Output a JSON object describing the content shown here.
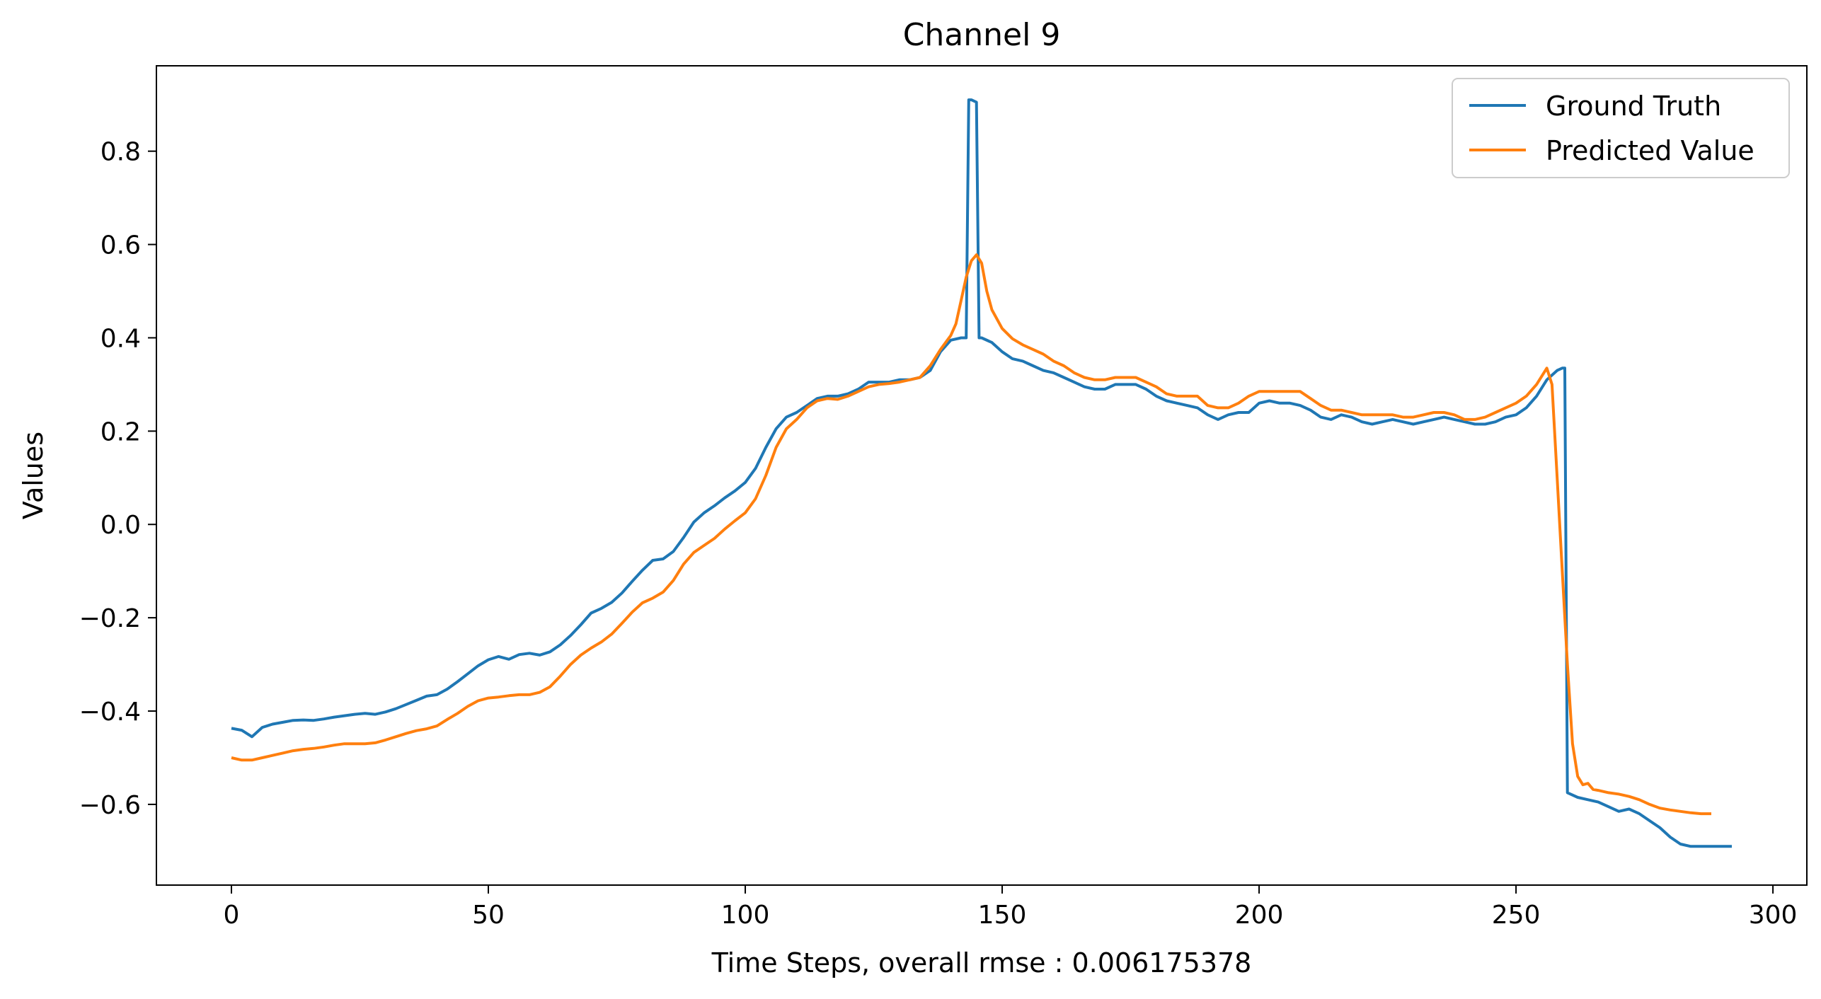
{
  "chart_data": {
    "type": "line",
    "title": "Channel 9",
    "xlabel": "Time Steps, overall rmse : 0.006175378",
    "ylabel": "Values",
    "xlim": [
      -14.6,
      306.6
    ],
    "ylim": [
      -0.773,
      0.983
    ],
    "x_ticks": [
      0,
      50,
      100,
      150,
      200,
      250,
      300
    ],
    "x_tick_labels": [
      "0",
      "50",
      "100",
      "150",
      "200",
      "250",
      "300"
    ],
    "y_ticks": [
      -0.6,
      -0.4,
      -0.2,
      0.0,
      0.2,
      0.4,
      0.6,
      0.8
    ],
    "y_tick_labels": [
      "−0.6",
      "−0.4",
      "−0.2",
      "0.0",
      "0.2",
      "0.4",
      "0.6",
      "0.8"
    ],
    "grid": false,
    "legend": {
      "position": "top-right",
      "entries": [
        "Ground Truth",
        "Predicted Value"
      ]
    },
    "series": [
      {
        "name": "Ground Truth",
        "color": "#1f77b4",
        "points": [
          [
            0,
            -0.437
          ],
          [
            2,
            -0.441
          ],
          [
            4,
            -0.455
          ],
          [
            6,
            -0.435
          ],
          [
            8,
            -0.428
          ],
          [
            10,
            -0.424
          ],
          [
            12,
            -0.42
          ],
          [
            14,
            -0.419
          ],
          [
            16,
            -0.42
          ],
          [
            18,
            -0.417
          ],
          [
            20,
            -0.413
          ],
          [
            22,
            -0.41
          ],
          [
            24,
            -0.407
          ],
          [
            26,
            -0.405
          ],
          [
            28,
            -0.407
          ],
          [
            30,
            -0.402
          ],
          [
            32,
            -0.395
          ],
          [
            34,
            -0.386
          ],
          [
            36,
            -0.377
          ],
          [
            38,
            -0.368
          ],
          [
            40,
            -0.365
          ],
          [
            42,
            -0.353
          ],
          [
            44,
            -0.337
          ],
          [
            46,
            -0.32
          ],
          [
            48,
            -0.303
          ],
          [
            50,
            -0.29
          ],
          [
            52,
            -0.283
          ],
          [
            54,
            -0.289
          ],
          [
            56,
            -0.279
          ],
          [
            58,
            -0.276
          ],
          [
            60,
            -0.28
          ],
          [
            62,
            -0.273
          ],
          [
            64,
            -0.258
          ],
          [
            66,
            -0.238
          ],
          [
            68,
            -0.215
          ],
          [
            70,
            -0.19
          ],
          [
            72,
            -0.18
          ],
          [
            74,
            -0.167
          ],
          [
            76,
            -0.147
          ],
          [
            78,
            -0.122
          ],
          [
            80,
            -0.098
          ],
          [
            82,
            -0.077
          ],
          [
            84,
            -0.074
          ],
          [
            86,
            -0.058
          ],
          [
            88,
            -0.028
          ],
          [
            90,
            0.005
          ],
          [
            92,
            0.025
          ],
          [
            94,
            0.04
          ],
          [
            96,
            0.057
          ],
          [
            98,
            0.072
          ],
          [
            100,
            0.09
          ],
          [
            102,
            0.12
          ],
          [
            104,
            0.165
          ],
          [
            106,
            0.205
          ],
          [
            108,
            0.23
          ],
          [
            110,
            0.24
          ],
          [
            112,
            0.255
          ],
          [
            114,
            0.27
          ],
          [
            116,
            0.275
          ],
          [
            118,
            0.275
          ],
          [
            120,
            0.28
          ],
          [
            122,
            0.29
          ],
          [
            124,
            0.305
          ],
          [
            126,
            0.305
          ],
          [
            128,
            0.305
          ],
          [
            130,
            0.31
          ],
          [
            132,
            0.31
          ],
          [
            134,
            0.315
          ],
          [
            136,
            0.33
          ],
          [
            138,
            0.37
          ],
          [
            140,
            0.395
          ],
          [
            142,
            0.4
          ],
          [
            143,
            0.4
          ],
          [
            143.5,
            0.91
          ],
          [
            144,
            0.91
          ],
          [
            145,
            0.905
          ],
          [
            145.5,
            0.4
          ],
          [
            146,
            0.4
          ],
          [
            148,
            0.39
          ],
          [
            150,
            0.37
          ],
          [
            152,
            0.355
          ],
          [
            154,
            0.35
          ],
          [
            156,
            0.34
          ],
          [
            158,
            0.33
          ],
          [
            160,
            0.325
          ],
          [
            162,
            0.315
          ],
          [
            164,
            0.305
          ],
          [
            166,
            0.295
          ],
          [
            168,
            0.29
          ],
          [
            170,
            0.29
          ],
          [
            172,
            0.3
          ],
          [
            174,
            0.3
          ],
          [
            176,
            0.3
          ],
          [
            178,
            0.29
          ],
          [
            180,
            0.275
          ],
          [
            182,
            0.265
          ],
          [
            184,
            0.26
          ],
          [
            186,
            0.255
          ],
          [
            188,
            0.25
          ],
          [
            190,
            0.235
          ],
          [
            192,
            0.225
          ],
          [
            194,
            0.235
          ],
          [
            196,
            0.24
          ],
          [
            198,
            0.24
          ],
          [
            200,
            0.26
          ],
          [
            202,
            0.265
          ],
          [
            204,
            0.26
          ],
          [
            206,
            0.26
          ],
          [
            208,
            0.255
          ],
          [
            210,
            0.245
          ],
          [
            212,
            0.23
          ],
          [
            214,
            0.225
          ],
          [
            216,
            0.235
          ],
          [
            218,
            0.23
          ],
          [
            220,
            0.22
          ],
          [
            222,
            0.215
          ],
          [
            224,
            0.22
          ],
          [
            226,
            0.225
          ],
          [
            228,
            0.22
          ],
          [
            230,
            0.215
          ],
          [
            232,
            0.22
          ],
          [
            234,
            0.225
          ],
          [
            236,
            0.23
          ],
          [
            238,
            0.225
          ],
          [
            240,
            0.22
          ],
          [
            242,
            0.215
          ],
          [
            244,
            0.215
          ],
          [
            246,
            0.22
          ],
          [
            248,
            0.23
          ],
          [
            250,
            0.235
          ],
          [
            252,
            0.25
          ],
          [
            254,
            0.275
          ],
          [
            256,
            0.31
          ],
          [
            258,
            0.33
          ],
          [
            259,
            0.335
          ],
          [
            259.5,
            0.335
          ],
          [
            260,
            -0.575
          ],
          [
            262,
            -0.585
          ],
          [
            264,
            -0.59
          ],
          [
            266,
            -0.595
          ],
          [
            268,
            -0.605
          ],
          [
            270,
            -0.615
          ],
          [
            272,
            -0.61
          ],
          [
            274,
            -0.62
          ],
          [
            276,
            -0.635
          ],
          [
            278,
            -0.65
          ],
          [
            280,
            -0.67
          ],
          [
            282,
            -0.685
          ],
          [
            284,
            -0.69
          ],
          [
            286,
            -0.69
          ],
          [
            288,
            -0.69
          ],
          [
            290,
            -0.69
          ],
          [
            292,
            -0.69
          ]
        ]
      },
      {
        "name": "Predicted Value",
        "color": "#ff7f0e",
        "points": [
          [
            0,
            -0.5
          ],
          [
            2,
            -0.505
          ],
          [
            4,
            -0.505
          ],
          [
            6,
            -0.5
          ],
          [
            8,
            -0.495
          ],
          [
            10,
            -0.49
          ],
          [
            12,
            -0.485
          ],
          [
            14,
            -0.482
          ],
          [
            16,
            -0.48
          ],
          [
            18,
            -0.477
          ],
          [
            20,
            -0.473
          ],
          [
            22,
            -0.47
          ],
          [
            24,
            -0.47
          ],
          [
            26,
            -0.47
          ],
          [
            28,
            -0.468
          ],
          [
            30,
            -0.462
          ],
          [
            32,
            -0.455
          ],
          [
            34,
            -0.448
          ],
          [
            36,
            -0.442
          ],
          [
            38,
            -0.438
          ],
          [
            40,
            -0.432
          ],
          [
            42,
            -0.418
          ],
          [
            44,
            -0.405
          ],
          [
            46,
            -0.39
          ],
          [
            48,
            -0.378
          ],
          [
            50,
            -0.372
          ],
          [
            52,
            -0.37
          ],
          [
            54,
            -0.367
          ],
          [
            56,
            -0.365
          ],
          [
            58,
            -0.365
          ],
          [
            60,
            -0.36
          ],
          [
            62,
            -0.348
          ],
          [
            64,
            -0.325
          ],
          [
            66,
            -0.3
          ],
          [
            68,
            -0.28
          ],
          [
            70,
            -0.265
          ],
          [
            72,
            -0.252
          ],
          [
            74,
            -0.235
          ],
          [
            76,
            -0.212
          ],
          [
            78,
            -0.188
          ],
          [
            80,
            -0.168
          ],
          [
            82,
            -0.158
          ],
          [
            84,
            -0.145
          ],
          [
            86,
            -0.12
          ],
          [
            88,
            -0.085
          ],
          [
            90,
            -0.06
          ],
          [
            92,
            -0.045
          ],
          [
            94,
            -0.03
          ],
          [
            96,
            -0.01
          ],
          [
            98,
            0.008
          ],
          [
            100,
            0.025
          ],
          [
            102,
            0.055
          ],
          [
            104,
            0.105
          ],
          [
            106,
            0.165
          ],
          [
            108,
            0.205
          ],
          [
            110,
            0.225
          ],
          [
            112,
            0.25
          ],
          [
            114,
            0.265
          ],
          [
            116,
            0.27
          ],
          [
            118,
            0.268
          ],
          [
            120,
            0.275
          ],
          [
            122,
            0.285
          ],
          [
            124,
            0.295
          ],
          [
            126,
            0.3
          ],
          [
            128,
            0.302
          ],
          [
            130,
            0.305
          ],
          [
            132,
            0.31
          ],
          [
            134,
            0.315
          ],
          [
            136,
            0.34
          ],
          [
            138,
            0.375
          ],
          [
            140,
            0.405
          ],
          [
            141,
            0.43
          ],
          [
            142,
            0.48
          ],
          [
            143,
            0.53
          ],
          [
            144,
            0.565
          ],
          [
            145,
            0.578
          ],
          [
            146,
            0.56
          ],
          [
            147,
            0.5
          ],
          [
            148,
            0.46
          ],
          [
            150,
            0.42
          ],
          [
            152,
            0.398
          ],
          [
            154,
            0.385
          ],
          [
            156,
            0.375
          ],
          [
            158,
            0.365
          ],
          [
            160,
            0.35
          ],
          [
            162,
            0.34
          ],
          [
            164,
            0.325
          ],
          [
            166,
            0.315
          ],
          [
            168,
            0.31
          ],
          [
            170,
            0.31
          ],
          [
            172,
            0.315
          ],
          [
            174,
            0.315
          ],
          [
            176,
            0.315
          ],
          [
            178,
            0.305
          ],
          [
            180,
            0.295
          ],
          [
            182,
            0.28
          ],
          [
            184,
            0.275
          ],
          [
            186,
            0.275
          ],
          [
            188,
            0.275
          ],
          [
            190,
            0.255
          ],
          [
            192,
            0.25
          ],
          [
            194,
            0.25
          ],
          [
            196,
            0.26
          ],
          [
            198,
            0.275
          ],
          [
            200,
            0.285
          ],
          [
            202,
            0.285
          ],
          [
            204,
            0.285
          ],
          [
            206,
            0.285
          ],
          [
            208,
            0.285
          ],
          [
            210,
            0.27
          ],
          [
            212,
            0.255
          ],
          [
            214,
            0.245
          ],
          [
            216,
            0.245
          ],
          [
            218,
            0.24
          ],
          [
            220,
            0.235
          ],
          [
            222,
            0.235
          ],
          [
            224,
            0.235
          ],
          [
            226,
            0.235
          ],
          [
            228,
            0.23
          ],
          [
            230,
            0.23
          ],
          [
            232,
            0.235
          ],
          [
            234,
            0.24
          ],
          [
            236,
            0.24
          ],
          [
            238,
            0.235
          ],
          [
            240,
            0.225
          ],
          [
            242,
            0.225
          ],
          [
            244,
            0.23
          ],
          [
            246,
            0.24
          ],
          [
            248,
            0.25
          ],
          [
            250,
            0.26
          ],
          [
            252,
            0.275
          ],
          [
            254,
            0.3
          ],
          [
            256,
            0.335
          ],
          [
            257,
            0.3
          ],
          [
            258,
            0.1
          ],
          [
            259,
            -0.1
          ],
          [
            260,
            -0.3
          ],
          [
            261,
            -0.47
          ],
          [
            262,
            -0.54
          ],
          [
            263,
            -0.558
          ],
          [
            264,
            -0.555
          ],
          [
            265,
            -0.568
          ],
          [
            266,
            -0.57
          ],
          [
            268,
            -0.575
          ],
          [
            270,
            -0.578
          ],
          [
            272,
            -0.583
          ],
          [
            274,
            -0.59
          ],
          [
            276,
            -0.6
          ],
          [
            278,
            -0.608
          ],
          [
            280,
            -0.612
          ],
          [
            282,
            -0.615
          ],
          [
            284,
            -0.618
          ],
          [
            286,
            -0.62
          ],
          [
            288,
            -0.62
          ]
        ]
      }
    ]
  }
}
